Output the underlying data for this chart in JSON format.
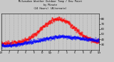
{
  "title_line1": "Milwaukee Weather Outdoor Temp / Dew Point",
  "title_line2": "by Minute",
  "title_line3": "(24 Hours) (Alternate)",
  "bg_color": "#c8c8c8",
  "plot_bg_color": "#c8c8c8",
  "title_color": "#000000",
  "grid_color": "#888888",
  "temp_color": "#ff0000",
  "dew_color": "#0000ff",
  "ylim": [
    20,
    90
  ],
  "yticks": [
    30,
    40,
    50,
    60,
    70,
    80
  ],
  "n_points": 1440
}
